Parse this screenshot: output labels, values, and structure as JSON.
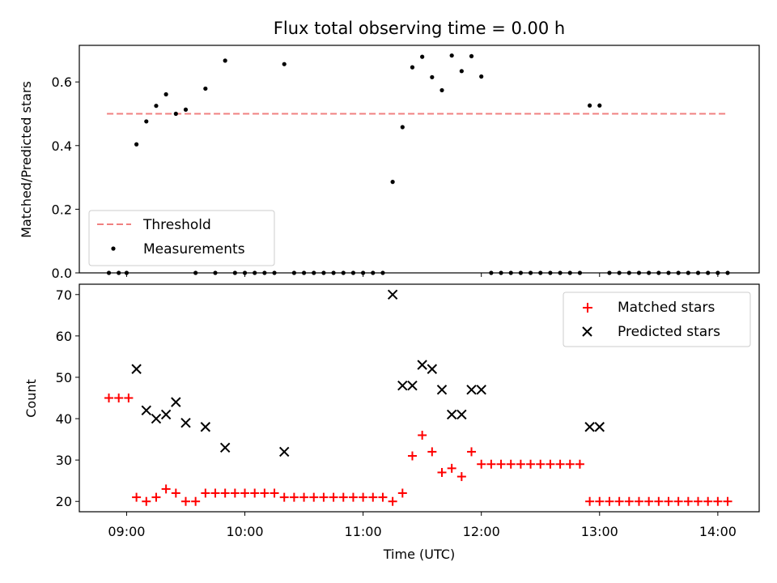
{
  "chart_data": [
    {
      "type": "scatter",
      "title": "Flux total observing time = 0.00 h",
      "ylabel": "Matched/Predicted stars",
      "xlabel": "",
      "xlim": [
        "08:36",
        "14:21"
      ],
      "ylim": [
        0,
        0.715
      ],
      "yticks": [
        0.0,
        0.2,
        0.4,
        0.6
      ],
      "ytick_labels": [
        "0.0",
        "0.2",
        "0.4",
        "0.6"
      ],
      "threshold": {
        "name": "Threshold",
        "value": 0.5,
        "x_range": [
          "08:50",
          "14:05"
        ],
        "color": "#f08080",
        "style": "dashed"
      },
      "series": [
        {
          "name": "Measurements",
          "color": "#000000",
          "points": [
            [
              "08:51",
              0.0
            ],
            [
              "08:56",
              0.0
            ],
            [
              "09:00",
              0.0
            ],
            [
              "09:05",
              0.404
            ],
            [
              "09:10",
              0.476
            ],
            [
              "09:15",
              0.525
            ],
            [
              "09:20",
              0.561
            ],
            [
              "09:25",
              0.5
            ],
            [
              "09:30",
              0.513
            ],
            [
              "09:35",
              0.0
            ],
            [
              "09:40",
              0.579
            ],
            [
              "09:45",
              0.0
            ],
            [
              "09:50",
              0.667
            ],
            [
              "09:55",
              0.0
            ],
            [
              "10:00",
              0.0
            ],
            [
              "10:05",
              0.0
            ],
            [
              "10:10",
              0.0
            ],
            [
              "10:15",
              0.0
            ],
            [
              "10:20",
              0.656
            ],
            [
              "10:25",
              0.0
            ],
            [
              "10:30",
              0.0
            ],
            [
              "10:35",
              0.0
            ],
            [
              "10:40",
              0.0
            ],
            [
              "10:45",
              0.0
            ],
            [
              "10:50",
              0.0
            ],
            [
              "10:55",
              0.0
            ],
            [
              "11:00",
              0.0
            ],
            [
              "11:05",
              0.0
            ],
            [
              "11:10",
              0.0
            ],
            [
              "11:15",
              0.286
            ],
            [
              "11:20",
              0.458
            ],
            [
              "11:25",
              0.646
            ],
            [
              "11:30",
              0.679
            ],
            [
              "11:35",
              0.615
            ],
            [
              "11:40",
              0.574
            ],
            [
              "11:45",
              0.683
            ],
            [
              "11:50",
              0.634
            ],
            [
              "11:55",
              0.681
            ],
            [
              "12:00",
              0.617
            ],
            [
              "12:05",
              0.0
            ],
            [
              "12:10",
              0.0
            ],
            [
              "12:15",
              0.0
            ],
            [
              "12:20",
              0.0
            ],
            [
              "12:25",
              0.0
            ],
            [
              "12:30",
              0.0
            ],
            [
              "12:35",
              0.0
            ],
            [
              "12:40",
              0.0
            ],
            [
              "12:45",
              0.0
            ],
            [
              "12:50",
              0.0
            ],
            [
              "12:55",
              0.526
            ],
            [
              "13:00",
              0.526
            ],
            [
              "13:05",
              0.0
            ],
            [
              "13:10",
              0.0
            ],
            [
              "13:15",
              0.0
            ],
            [
              "13:20",
              0.0
            ],
            [
              "13:25",
              0.0
            ],
            [
              "13:30",
              0.0
            ],
            [
              "13:35",
              0.0
            ],
            [
              "13:40",
              0.0
            ],
            [
              "13:45",
              0.0
            ],
            [
              "13:50",
              0.0
            ],
            [
              "13:55",
              0.0
            ],
            [
              "14:00",
              0.0
            ],
            [
              "14:05",
              0.0
            ]
          ]
        }
      ],
      "legend": {
        "location": "lower-left",
        "entries": [
          "Threshold",
          "Measurements"
        ]
      }
    },
    {
      "type": "scatter",
      "title": "",
      "ylabel": "Count",
      "xlabel": "Time (UTC)",
      "xlim": [
        "08:36",
        "14:21"
      ],
      "xticks": [
        "09:00",
        "10:00",
        "11:00",
        "12:00",
        "13:00",
        "14:00"
      ],
      "xtick_labels": [
        "09:00",
        "10:00",
        "11:00",
        "12:00",
        "13:00",
        "14:00"
      ],
      "ylim": [
        17.5,
        72.5
      ],
      "yticks": [
        20,
        30,
        40,
        50,
        60,
        70
      ],
      "ytick_labels": [
        "20",
        "30",
        "40",
        "50",
        "60",
        "70"
      ],
      "series": [
        {
          "name": "Matched stars",
          "marker": "plus",
          "color": "#ff0000",
          "points": [
            [
              "08:51",
              45
            ],
            [
              "08:56",
              45
            ],
            [
              "09:01",
              45
            ],
            [
              "09:05",
              21
            ],
            [
              "09:10",
              20
            ],
            [
              "09:15",
              21
            ],
            [
              "09:20",
              23
            ],
            [
              "09:25",
              22
            ],
            [
              "09:30",
              20
            ],
            [
              "09:35",
              20
            ],
            [
              "09:40",
              22
            ],
            [
              "09:45",
              22
            ],
            [
              "09:50",
              22
            ],
            [
              "09:55",
              22
            ],
            [
              "10:00",
              22
            ],
            [
              "10:05",
              22
            ],
            [
              "10:10",
              22
            ],
            [
              "10:15",
              22
            ],
            [
              "10:20",
              21
            ],
            [
              "10:25",
              21
            ],
            [
              "10:30",
              21
            ],
            [
              "10:35",
              21
            ],
            [
              "10:40",
              21
            ],
            [
              "10:45",
              21
            ],
            [
              "10:50",
              21
            ],
            [
              "10:55",
              21
            ],
            [
              "11:00",
              21
            ],
            [
              "11:05",
              21
            ],
            [
              "11:10",
              21
            ],
            [
              "11:15",
              20
            ],
            [
              "11:20",
              22
            ],
            [
              "11:25",
              31
            ],
            [
              "11:30",
              36
            ],
            [
              "11:35",
              32
            ],
            [
              "11:40",
              27
            ],
            [
              "11:45",
              28
            ],
            [
              "11:50",
              26
            ],
            [
              "11:55",
              32
            ],
            [
              "12:00",
              29
            ],
            [
              "12:05",
              29
            ],
            [
              "12:10",
              29
            ],
            [
              "12:15",
              29
            ],
            [
              "12:20",
              29
            ],
            [
              "12:25",
              29
            ],
            [
              "12:30",
              29
            ],
            [
              "12:35",
              29
            ],
            [
              "12:40",
              29
            ],
            [
              "12:45",
              29
            ],
            [
              "12:50",
              29
            ],
            [
              "12:55",
              20
            ],
            [
              "13:00",
              20
            ],
            [
              "13:05",
              20
            ],
            [
              "13:10",
              20
            ],
            [
              "13:15",
              20
            ],
            [
              "13:20",
              20
            ],
            [
              "13:25",
              20
            ],
            [
              "13:30",
              20
            ],
            [
              "13:35",
              20
            ],
            [
              "13:40",
              20
            ],
            [
              "13:45",
              20
            ],
            [
              "13:50",
              20
            ],
            [
              "13:55",
              20
            ],
            [
              "14:00",
              20
            ],
            [
              "14:05",
              20
            ]
          ]
        },
        {
          "name": "Predicted stars",
          "marker": "x",
          "color": "#000000",
          "points": [
            [
              "09:05",
              52
            ],
            [
              "09:10",
              42
            ],
            [
              "09:15",
              40
            ],
            [
              "09:20",
              41
            ],
            [
              "09:25",
              44
            ],
            [
              "09:30",
              39
            ],
            [
              "09:40",
              38
            ],
            [
              "09:50",
              33
            ],
            [
              "10:20",
              32
            ],
            [
              "11:15",
              70
            ],
            [
              "11:20",
              48
            ],
            [
              "11:25",
              48
            ],
            [
              "11:30",
              53
            ],
            [
              "11:35",
              52
            ],
            [
              "11:40",
              47
            ],
            [
              "11:45",
              41
            ],
            [
              "11:50",
              41
            ],
            [
              "11:55",
              47
            ],
            [
              "12:00",
              47
            ],
            [
              "12:55",
              38
            ],
            [
              "13:00",
              38
            ]
          ]
        }
      ],
      "legend": {
        "location": "upper-right",
        "entries": [
          "Matched stars",
          "Predicted stars"
        ]
      }
    }
  ]
}
